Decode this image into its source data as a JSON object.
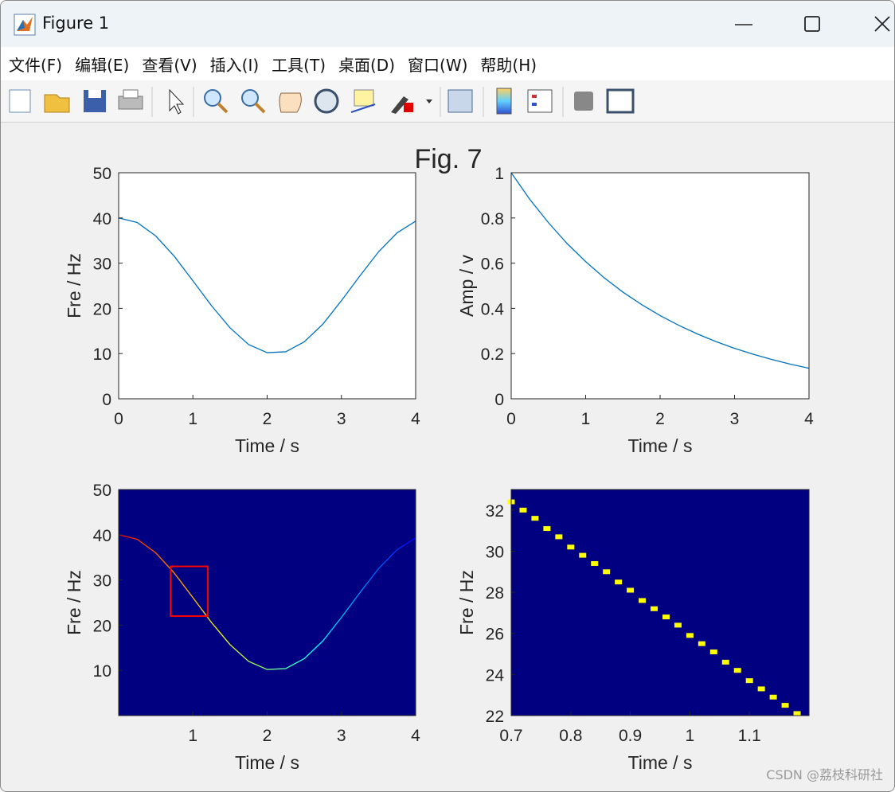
{
  "window": {
    "title": "Figure 1",
    "menu": [
      "文件(F)",
      "编辑(E)",
      "查看(V)",
      "插入(I)",
      "工具(T)",
      "桌面(D)",
      "窗口(W)",
      "帮助(H)"
    ]
  },
  "figure_title": "Fig. 7",
  "watermark": "CSDN @荔枝科研社",
  "chart_data": [
    {
      "type": "line",
      "x": [
        0,
        0.25,
        0.5,
        0.75,
        1,
        1.25,
        1.5,
        1.75,
        2,
        2.25,
        2.5,
        2.75,
        3,
        3.25,
        3.5,
        3.75,
        4
      ],
      "series": [
        {
          "color": "#0072bd",
          "values": [
            40,
            39,
            36,
            31.5,
            26.1,
            20.6,
            15.7,
            12,
            10.2,
            10.4,
            12.6,
            16.5,
            21.7,
            27.2,
            32.5,
            36.7,
            39.3
          ]
        }
      ],
      "xlim": [
        0,
        4
      ],
      "ylim": [
        0,
        50
      ],
      "xticks": [
        0,
        1,
        2,
        3,
        4
      ],
      "yticks": [
        0,
        10,
        20,
        30,
        40,
        50
      ],
      "xlabel": "Time / s",
      "ylabel": "Fre / Hz",
      "background": "#ffffff"
    },
    {
      "type": "line",
      "x": [
        0,
        0.25,
        0.5,
        0.75,
        1,
        1.25,
        1.5,
        1.75,
        2,
        2.25,
        2.5,
        2.75,
        3,
        3.25,
        3.5,
        3.75,
        4
      ],
      "series": [
        {
          "color": "#0072bd",
          "values": [
            1,
            0.882,
            0.779,
            0.687,
            0.607,
            0.535,
            0.472,
            0.417,
            0.368,
            0.325,
            0.287,
            0.253,
            0.223,
            0.197,
            0.174,
            0.153,
            0.135
          ]
        }
      ],
      "xlim": [
        0,
        4
      ],
      "ylim": [
        0,
        1
      ],
      "xticks": [
        0,
        1,
        2,
        3,
        4
      ],
      "yticks": [
        0,
        0.2,
        0.4,
        0.6,
        0.8,
        1
      ],
      "xlabel": "Time / s",
      "ylabel": "Amp / v",
      "background": "#ffffff"
    },
    {
      "type": "line",
      "x": [
        0,
        0.25,
        0.5,
        0.75,
        1,
        1.25,
        1.5,
        1.75,
        2,
        2.25,
        2.5,
        2.75,
        3,
        3.25,
        3.5,
        3.75,
        4
      ],
      "series": [
        {
          "values": [
            40,
            39,
            36,
            31.5,
            26.1,
            20.6,
            15.7,
            12,
            10.2,
            10.4,
            12.6,
            16.5,
            21.7,
            27.2,
            32.5,
            36.7,
            39.3
          ]
        }
      ],
      "gradient": [
        "#ff0000",
        "#ffff00",
        "#00ffff",
        "#0000ff"
      ],
      "highlight": {
        "x": [
          0.7,
          1.2
        ],
        "y": [
          22,
          33
        ],
        "color": "#ff0000"
      },
      "xlim": [
        0,
        4
      ],
      "ylim": [
        0,
        50
      ],
      "xticks": [
        1,
        2,
        3,
        4
      ],
      "yticks": [
        10,
        20,
        30,
        40,
        50
      ],
      "xlabel": "Time / s",
      "ylabel": "Fre / Hz",
      "background": "#000080"
    },
    {
      "type": "scatter",
      "marker": "square",
      "x": [
        0.7,
        0.72,
        0.74,
        0.76,
        0.78,
        0.8,
        0.82,
        0.84,
        0.86,
        0.88,
        0.9,
        0.92,
        0.94,
        0.96,
        0.98,
        1,
        1.02,
        1.04,
        1.06,
        1.08,
        1.1,
        1.12,
        1.14,
        1.16,
        1.18
      ],
      "series": [
        {
          "color": "#ffff00",
          "values": [
            32.4,
            32,
            31.6,
            31.1,
            30.7,
            30.2,
            29.8,
            29.4,
            29,
            28.5,
            28.1,
            27.6,
            27.2,
            26.8,
            26.4,
            25.9,
            25.5,
            25.1,
            24.6,
            24.2,
            23.7,
            23.3,
            22.9,
            22.5,
            22.1
          ]
        }
      ],
      "xlim": [
        0.7,
        1.2
      ],
      "ylim": [
        22,
        33
      ],
      "xticks": [
        0.7,
        0.8,
        0.9,
        1,
        1.1
      ],
      "yticks": [
        22,
        24,
        26,
        28,
        30,
        32
      ],
      "xlabel": "Time / s",
      "ylabel": "Fre / Hz",
      "background": "#000080"
    }
  ]
}
